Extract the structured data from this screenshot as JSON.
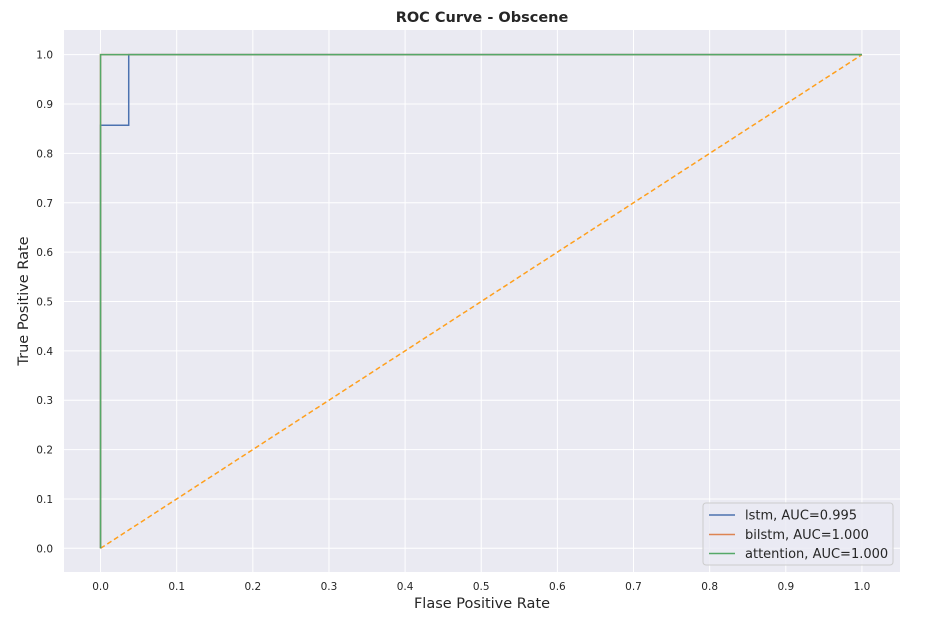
{
  "chart_data": {
    "type": "line",
    "title": "ROC Curve - Obscene",
    "xlabel": "Flase Positive Rate",
    "ylabel": "True Positive Rate",
    "xlim": [
      -0.048,
      1.05
    ],
    "ylim": [
      -0.048,
      1.05
    ],
    "xticks": [
      "0.0",
      "0.1",
      "0.2",
      "0.3",
      "0.4",
      "0.5",
      "0.6",
      "0.7",
      "0.8",
      "0.9",
      "1.0"
    ],
    "yticks": [
      "0.0",
      "0.1",
      "0.2",
      "0.3",
      "0.4",
      "0.5",
      "0.6",
      "0.7",
      "0.8",
      "0.9",
      "1.0"
    ],
    "grid": true,
    "legend_position": "lower-right",
    "series": [
      {
        "name": "lstm, AUC=0.995",
        "color": "#4c72b0",
        "x": [
          0.0,
          0.0,
          0.037,
          0.037,
          1.0
        ],
        "y": [
          0.0,
          0.857,
          0.857,
          1.0,
          1.0
        ]
      },
      {
        "name": "bilstm, AUC=1.000",
        "color": "#dd8452",
        "x": [
          0.0,
          0.0,
          1.0
        ],
        "y": [
          0.0,
          1.0,
          1.0
        ]
      },
      {
        "name": "attention, AUC=1.000",
        "color": "#55a868",
        "x": [
          0.0,
          0.0,
          1.0
        ],
        "y": [
          0.0,
          1.0,
          1.0
        ]
      }
    ],
    "reference_line": {
      "color": "#ff9f1c",
      "style": "dashed",
      "x": [
        0.0,
        1.0
      ],
      "y": [
        0.0,
        1.0
      ]
    }
  }
}
